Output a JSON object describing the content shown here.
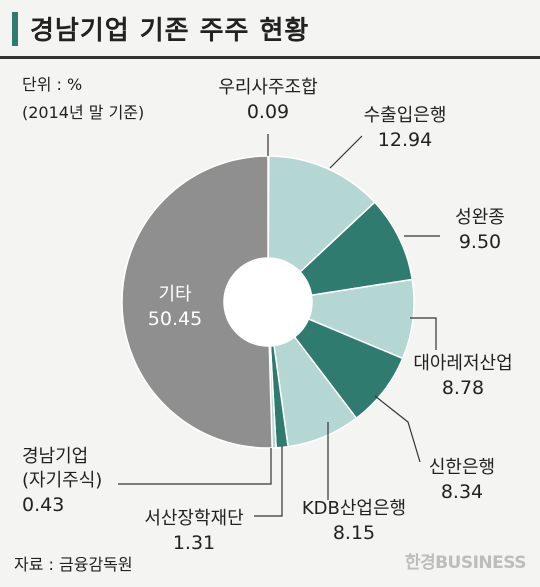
{
  "title": "경남기업 기존 주주 현황",
  "unit": "단위 : %",
  "basis": "(2014년 말 기준)",
  "source": "자료 : 금융감독원",
  "watermark": "한경BUSINESS",
  "colors": {
    "light": "#b4d7d4",
    "dark": "#2f7b70",
    "gray": "#8f8f8f",
    "accent": "#2f7b70"
  },
  "chart_data": {
    "type": "pie",
    "style": "donut",
    "unit": "%",
    "slices": [
      {
        "name": "우리사주조합",
        "value": 0.09,
        "value_text": "0.09",
        "color": "#2f7b70"
      },
      {
        "name": "수출입은행",
        "value": 12.94,
        "value_text": "12.94",
        "color": "#b4d7d4"
      },
      {
        "name": "성완종",
        "value": 9.5,
        "value_text": "9.50",
        "color": "#2f7b70"
      },
      {
        "name": "대아레저산업",
        "value": 8.78,
        "value_text": "8.78",
        "color": "#b4d7d4"
      },
      {
        "name": "신한은행",
        "value": 8.34,
        "value_text": "8.34",
        "color": "#2f7b70"
      },
      {
        "name": "KDB산업은행",
        "value": 8.15,
        "value_text": "8.15",
        "color": "#b4d7d4"
      },
      {
        "name": "서산장학재단",
        "value": 1.31,
        "value_text": "1.31",
        "color": "#2f7b70"
      },
      {
        "name": "경남기업\n(자기주식)",
        "value": 0.43,
        "value_text": "0.43",
        "color": "#b4d7d4"
      },
      {
        "name": "기타",
        "value": 50.45,
        "value_text": "50.45",
        "color": "#8f8f8f"
      }
    ]
  }
}
